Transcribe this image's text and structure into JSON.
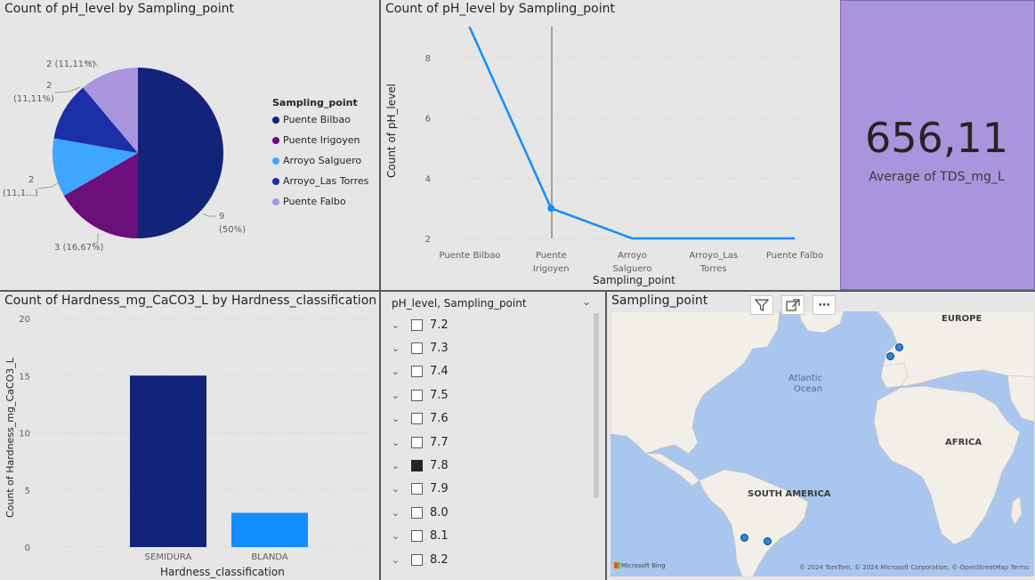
{
  "pie_panel": {
    "title": "Count of pH_level by Sampling_point",
    "legend_title": "Sampling_point",
    "slice_labels": [
      "9",
      "(50%)",
      "3 (16,67%)",
      "2",
      "(11,1...)",
      "2",
      "(11,11%)",
      "2 (11,11%)"
    ]
  },
  "line_panel": {
    "title": "Count of pH_level by Sampling_point",
    "ylabel": "Count of pH_level",
    "xlabel": "Sampling_point",
    "y_ticks": [
      "8",
      "6",
      "4",
      "2"
    ],
    "x_labels": [
      [
        "Puente Bilbao"
      ],
      [
        "Puente",
        "Irigoyen"
      ],
      [
        "Arroyo",
        "Salguero"
      ],
      [
        "Arroyo_Las",
        "Torres"
      ],
      [
        "Puente Falbo"
      ]
    ]
  },
  "kpi": {
    "value": "656,11",
    "label": "Average of TDS_mg_L",
    "color": "#a995dd"
  },
  "bar_panel": {
    "title": "Count of Hardness_mg_CaCO3_L by Hardness_classification",
    "ylabel": "Count of Hardness_mg_CaCO3_L",
    "xlabel": "Hardness_classification",
    "y_ticks": [
      "20",
      "15",
      "10",
      "5",
      "0"
    ]
  },
  "slicer": {
    "header": "pH_level, Sampling_point",
    "items": [
      {
        "label": "7.2",
        "checked": false
      },
      {
        "label": "7.3",
        "checked": false
      },
      {
        "label": "7.4",
        "checked": false
      },
      {
        "label": "7.5",
        "checked": false
      },
      {
        "label": "7.6",
        "checked": false
      },
      {
        "label": "7.7",
        "checked": false
      },
      {
        "label": "7.8",
        "checked": true
      },
      {
        "label": "7.9",
        "checked": false
      },
      {
        "label": "8.0",
        "checked": false
      },
      {
        "label": "8.1",
        "checked": false
      },
      {
        "label": "8.2",
        "checked": false
      }
    ]
  },
  "map_panel": {
    "title": "Sampling_point",
    "labels": {
      "europe": "EUROPE",
      "africa": "AFRICA",
      "south_america": "SOUTH AMERICA",
      "ocean_line1": "Atlantic",
      "ocean_line2": "Ocean"
    },
    "attribution": "© 2024 TomTom, © 2024 Microsoft Corporation, © OpenStreetMap  Terms",
    "brand": "Microsoft Bing",
    "toolbar_icons": [
      "filter-icon",
      "focus-mode-icon",
      "more-options-icon"
    ]
  },
  "chart_data": [
    {
      "type": "pie",
      "title": "Count of pH_level by Sampling_point",
      "legend_title": "Sampling_point",
      "categories": [
        "Puente Bilbao",
        "Puente Irigoyen",
        "Arroyo Salguero",
        "Arroyo_Las Torres",
        "Puente Falbo"
      ],
      "values": [
        9,
        3,
        2,
        2,
        2
      ],
      "colors": [
        "#12237a",
        "#6b0f7a",
        "#3ea6ff",
        "#1a2fa8",
        "#a995dd"
      ],
      "legend_placement": "right"
    },
    {
      "type": "line",
      "title": "Count of pH_level by Sampling_point",
      "xlabel": "Sampling_point",
      "ylabel": "Count of pH_level",
      "categories": [
        "Puente Bilbao",
        "Puente Irigoyen",
        "Arroyo Salguero",
        "Arroyo_Las Torres",
        "Puente Falbo"
      ],
      "values": [
        9,
        3,
        2,
        2,
        2
      ],
      "ylim": [
        1.5,
        9
      ],
      "color": "#118dff"
    },
    {
      "type": "bar",
      "title": "Count of Hardness_mg_CaCO3_L by Hardness_classification",
      "xlabel": "Hardness_classification",
      "ylabel": "Count of Hardness_mg_CaCO3_L",
      "categories": [
        "SEMIDURA",
        "BLANDA"
      ],
      "values": [
        15,
        3
      ],
      "colors": [
        "#12237a",
        "#118dff"
      ],
      "ylim": [
        0,
        20
      ]
    }
  ]
}
